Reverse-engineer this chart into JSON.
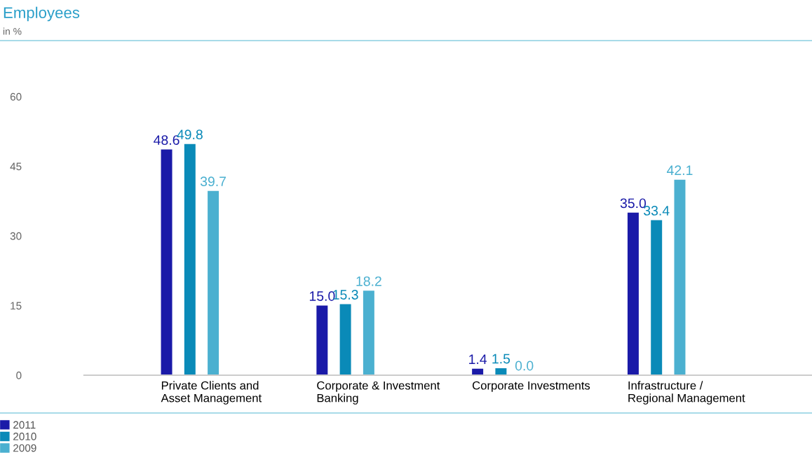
{
  "chart_data": {
    "type": "bar",
    "title": "Employees",
    "subtitle": "in %",
    "categories": [
      "Private Clients and\nAsset Management",
      "Corporate & Investment\nBanking",
      "Corporate Investments",
      "Infrastructure /\nRegional Management"
    ],
    "series": [
      {
        "name": "2011",
        "color": "#1a1aa8",
        "values": [
          48.6,
          15.0,
          1.4,
          35.0
        ],
        "value_labels": [
          "48.6",
          "15.0",
          "1.4",
          "35.0"
        ]
      },
      {
        "name": "2010",
        "color": "#0a8ab8",
        "values": [
          49.8,
          15.3,
          1.5,
          33.4
        ],
        "value_labels": [
          "49.8",
          "15.3",
          "1.5",
          "33.4"
        ]
      },
      {
        "name": "2009",
        "color": "#4bb0d0",
        "values": [
          39.7,
          18.2,
          0.0,
          42.1
        ],
        "value_labels": [
          "39.7",
          "18.2",
          "0.0",
          "42.1"
        ]
      }
    ],
    "ylim": [
      0,
      60
    ],
    "yticks": [
      0,
      15,
      30,
      45,
      60
    ],
    "grid": false,
    "legend": "bottom left"
  }
}
